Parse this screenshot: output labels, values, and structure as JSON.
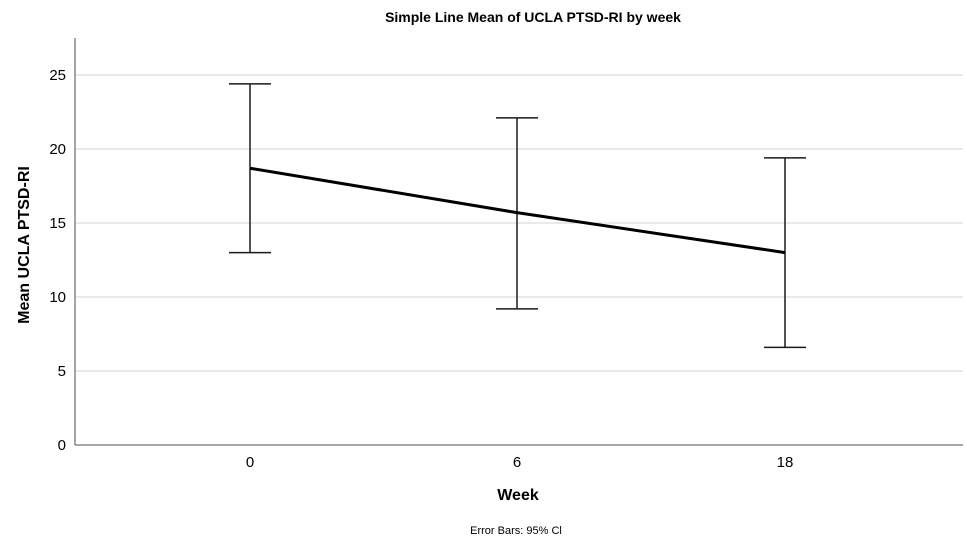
{
  "chart_data": {
    "type": "line",
    "title": "Simple Line Mean of UCLA PTSD-RI by week",
    "xlabel": "Week",
    "ylabel": "Mean UCLA PTSD-RI",
    "categories": [
      "0",
      "6",
      "18"
    ],
    "values": [
      18.7,
      15.7,
      13.0
    ],
    "error_bars": {
      "lower": [
        13.0,
        9.2,
        6.6
      ],
      "upper": [
        24.4,
        22.1,
        19.4
      ]
    },
    "ylim": [
      0,
      27.5
    ],
    "yticks": [
      0,
      5,
      10,
      15,
      20,
      25
    ],
    "grid": true,
    "footnote": "Error Bars: 95% Cl",
    "colors": {
      "line": "#000000",
      "grid": "#d4d4d4"
    }
  }
}
